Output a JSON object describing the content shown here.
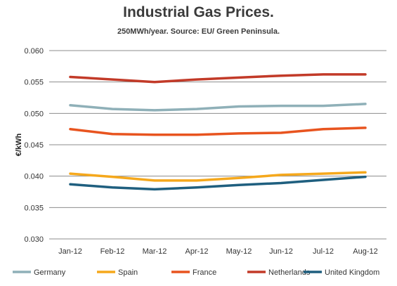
{
  "chart_data": {
    "type": "line",
    "title": "Industrial Gas Prices.",
    "subtitle": "250MWh/year.  Source: EU/ Green Peninsula.",
    "xlabel": "",
    "ylabel": "€/kWh",
    "categories": [
      "Jan-12",
      "Feb-12",
      "Mar-12",
      "Apr-12",
      "May-12",
      "Jun-12",
      "Jul-12",
      "Aug-12"
    ],
    "ylim": [
      0.03,
      0.06
    ],
    "yticks": [
      "0.030",
      "0.035",
      "0.040",
      "0.045",
      "0.050",
      "0.055",
      "0.060"
    ],
    "grid": true,
    "legend_position": "bottom",
    "series": [
      {
        "name": "Germany",
        "color": "#8fb0b8",
        "values": [
          0.0513,
          0.0507,
          0.0505,
          0.0507,
          0.0511,
          0.0512,
          0.0512,
          0.0515
        ]
      },
      {
        "name": "Spain",
        "color": "#f5a81c",
        "values": [
          0.0404,
          0.0399,
          0.0393,
          0.0393,
          0.0397,
          0.0402,
          0.0404,
          0.0406
        ]
      },
      {
        "name": "France",
        "color": "#e8541f",
        "values": [
          0.0475,
          0.0467,
          0.0466,
          0.0466,
          0.0468,
          0.0469,
          0.0475,
          0.0477
        ]
      },
      {
        "name": "Netherlands",
        "color": "#c23a28",
        "values": [
          0.0558,
          0.0554,
          0.055,
          0.0554,
          0.0557,
          0.056,
          0.0562,
          0.0562
        ]
      },
      {
        "name": "United Kingdom",
        "color": "#1f5f7f",
        "values": [
          0.0387,
          0.0382,
          0.0379,
          0.0382,
          0.0386,
          0.0389,
          0.0394,
          0.0399
        ]
      }
    ]
  }
}
